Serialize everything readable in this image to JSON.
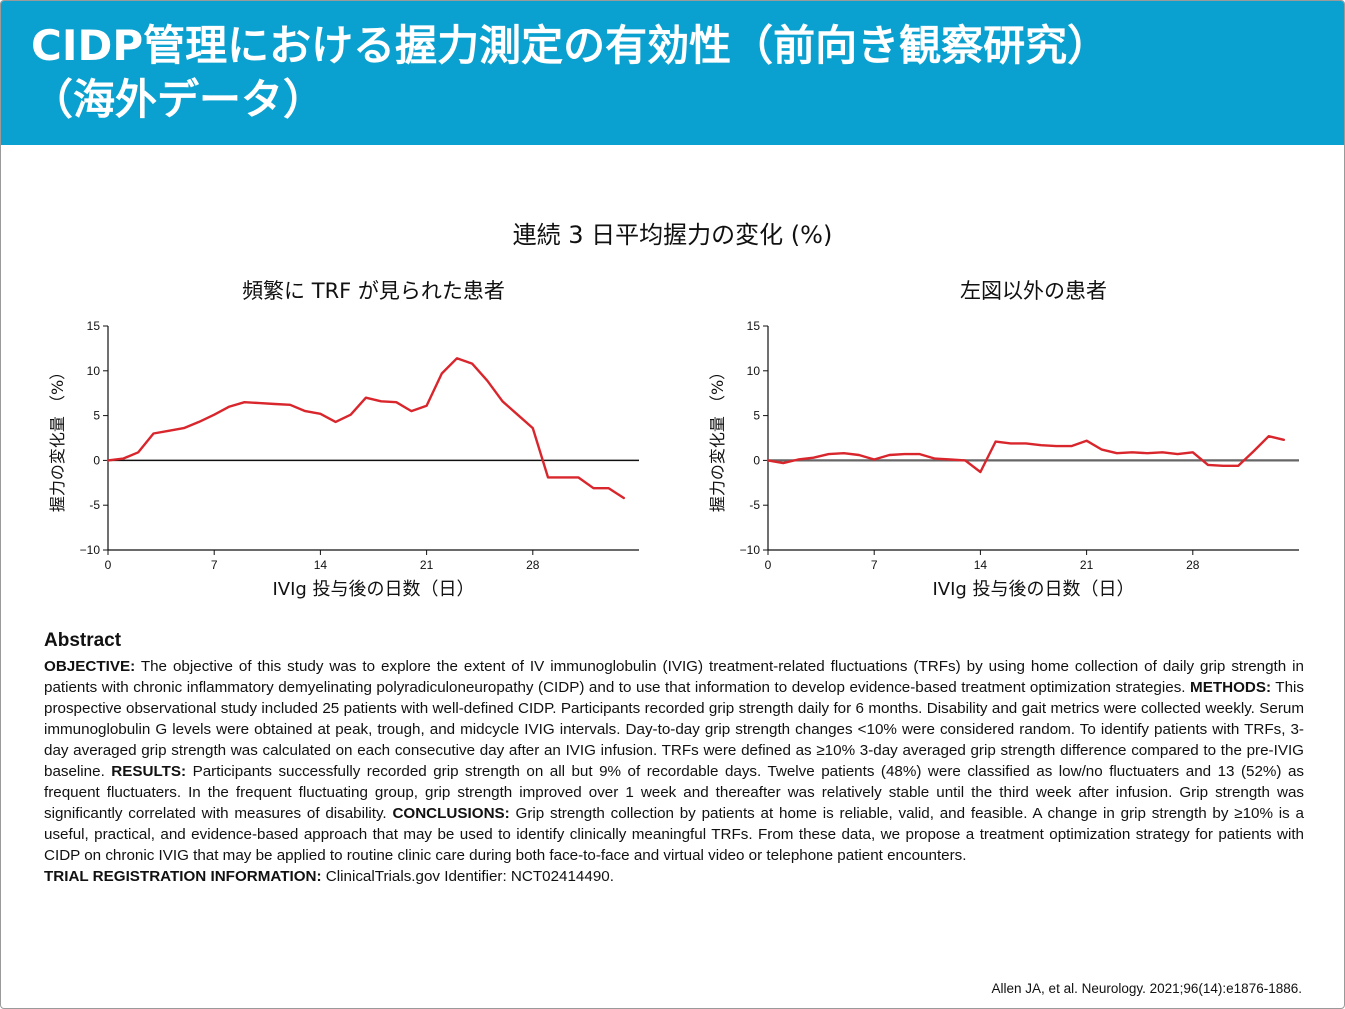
{
  "header": {
    "title_line1": "CIDP管理における握力測定の有効性（前向き観察研究）",
    "title_line2": "（海外データ）",
    "bg_color": "#0aa0cf"
  },
  "figure": {
    "main_title": "連続 3 日平均握力の変化 (%)"
  },
  "chart_data": [
    {
      "type": "line",
      "title": "頻繁に TRF が見られた患者",
      "xlabel": "IVIg 投与後の日数（日）",
      "ylabel": "握力の変化量 （%）",
      "xlim": [
        0,
        35
      ],
      "ylim": [
        -10,
        15
      ],
      "xticks": [
        0,
        7,
        14,
        21,
        28
      ],
      "yticks": [
        -10,
        -5,
        0,
        5,
        10,
        15
      ],
      "line_color": "#d8262c",
      "x": [
        0,
        1,
        2,
        3,
        4,
        5,
        6,
        7,
        8,
        9,
        10,
        11,
        12,
        13,
        14,
        15,
        16,
        17,
        18,
        19,
        20,
        21,
        22,
        23,
        24,
        25,
        26,
        27,
        28,
        29,
        30,
        31,
        32,
        33,
        34
      ],
      "y": [
        0,
        0.2,
        0.9,
        3.0,
        3.3,
        3.6,
        4.3,
        5.1,
        6.0,
        6.5,
        6.4,
        6.3,
        6.2,
        5.5,
        5.2,
        4.3,
        5.1,
        7.0,
        6.6,
        6.5,
        5.5,
        6.1,
        9.7,
        11.4,
        10.8,
        8.9,
        6.6,
        5.1,
        3.6,
        -1.9,
        -1.9,
        -1.9,
        -3.1,
        -3.1,
        -4.2
      ]
    },
    {
      "type": "line",
      "title": "左図以外の患者",
      "xlabel": "IVIg 投与後の日数（日）",
      "ylabel": "握力の変化量 （%）",
      "xlim": [
        0,
        35
      ],
      "ylim": [
        -10,
        15
      ],
      "xticks": [
        0,
        7,
        14,
        21,
        28
      ],
      "yticks": [
        -10,
        -5,
        0,
        5,
        10,
        15
      ],
      "line_color": "#d8262c",
      "x": [
        0,
        1,
        2,
        3,
        4,
        5,
        6,
        7,
        8,
        9,
        10,
        11,
        12,
        13,
        14,
        15,
        16,
        17,
        18,
        19,
        20,
        21,
        22,
        23,
        24,
        25,
        26,
        27,
        28,
        29,
        30,
        31,
        32,
        33,
        34
      ],
      "y": [
        0,
        -0.3,
        0.1,
        0.3,
        0.7,
        0.8,
        0.6,
        0.1,
        0.6,
        0.7,
        0.7,
        0.2,
        0.1,
        0.0,
        -1.3,
        2.1,
        1.9,
        1.9,
        1.7,
        1.6,
        1.6,
        2.2,
        1.2,
        0.8,
        0.9,
        0.8,
        0.9,
        0.7,
        0.9,
        -0.5,
        -0.6,
        -0.6,
        1.0,
        2.7,
        2.3
      ]
    }
  ],
  "abstract": {
    "heading": "Abstract",
    "objective_label": "OBJECTIVE:",
    "objective_text": " The objective of this study was to explore the extent of IV immunoglobulin (IVIG) treatment-related fluctuations (TRFs) by using home collection of daily grip strength in patients with chronic inflammatory demyelinating polyradiculoneuropathy (CIDP) and to use that information to develop evidence-based treatment optimization strategies. ",
    "methods_label": "METHODS:",
    "methods_text": " This prospective observational study included 25 patients with well-defined CIDP. Participants recorded grip strength daily for 6 months. Disability and gait metrics were collected weekly. Serum immunoglobulin G levels were obtained at peak, trough, and midcycle IVIG intervals. Day-to-day grip strength changes <10% were considered random. To identify patients with TRFs, 3-day averaged grip strength was calculated on each consecutive day after an IVIG infusion. TRFs were defined as ≥10% 3-day averaged grip strength difference compared to the pre-IVIG baseline. ",
    "results_label": "RESULTS:",
    "results_text": " Participants successfully recorded grip strength on all but 9% of recordable days. Twelve patients (48%) were classified as low/no fluctuaters and 13 (52%) as frequent fluctuaters. In the frequent fluctuating group, grip strength improved over 1 week and thereafter was relatively stable until the third week after infusion. Grip strength was significantly correlated with measures of disability. ",
    "conclusions_label": "CONCLUSIONS:",
    "conclusions_text": " Grip strength collection by patients at home is reliable, valid, and feasible. A change in grip strength by ≥10% is a useful, practical, and evidence-based approach that may be used to identify clinically meaningful TRFs. From these data, we propose a treatment optimization strategy for patients with CIDP on chronic IVIG that may be applied to routine clinic care during both face-to-face and virtual video or telephone patient encounters.",
    "trial_label": "TRIAL REGISTRATION INFORMATION:",
    "trial_text": " ClinicalTrials.gov Identifier: NCT02414490."
  },
  "citation": "Allen JA, et al. Neurology. 2021;96(14):e1876-1886."
}
